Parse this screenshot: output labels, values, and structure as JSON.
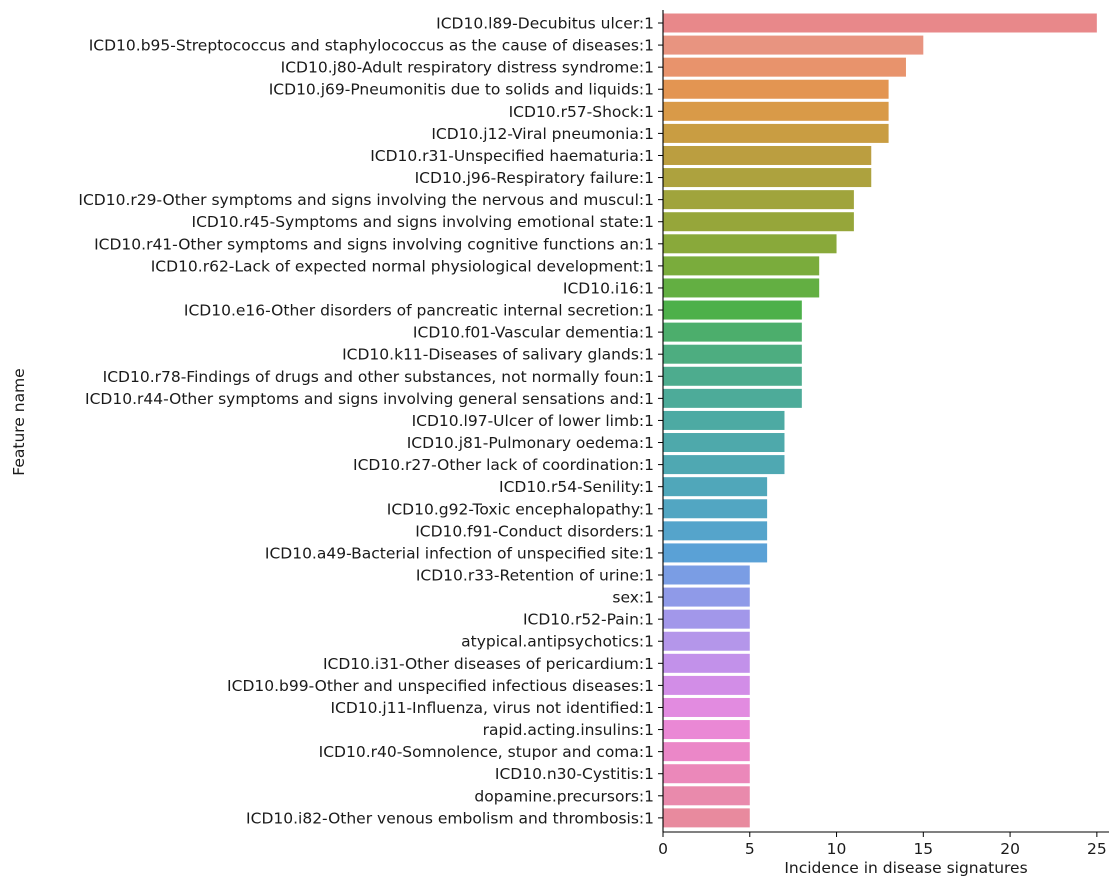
{
  "chart_data": {
    "type": "bar",
    "orientation": "horizontal",
    "xlabel": "Incidence in disease signatures",
    "ylabel": "Feature name",
    "xlim": [
      0,
      25.7
    ],
    "xticks": [
      0,
      5,
      10,
      15,
      20,
      25
    ],
    "grid": false,
    "categories": [
      "ICD10.l89-Decubitus ulcer:1",
      "ICD10.b95-Streptococcus and staphylococcus as the cause of diseases:1",
      "ICD10.j80-Adult respiratory distress syndrome:1",
      "ICD10.j69-Pneumonitis due to solids and liquids:1",
      "ICD10.r57-Shock:1",
      "ICD10.j12-Viral pneumonia:1",
      "ICD10.r31-Unspecified haematuria:1",
      "ICD10.j96-Respiratory failure:1",
      "ICD10.r29-Other symptoms and signs involving the nervous and muscul:1",
      "ICD10.r45-Symptoms and signs involving emotional state:1",
      "ICD10.r41-Other symptoms and signs involving cognitive functions an:1",
      "ICD10.r62-Lack of expected normal physiological development:1",
      "ICD10.i16:1",
      "ICD10.e16-Other disorders of pancreatic internal secretion:1",
      "ICD10.f01-Vascular dementia:1",
      "ICD10.k11-Diseases of salivary glands:1",
      "ICD10.r78-Findings of drugs and other substances, not normally foun:1",
      "ICD10.r44-Other symptoms and signs involving general sensations and:1",
      "ICD10.l97-Ulcer of lower limb:1",
      "ICD10.j81-Pulmonary oedema:1",
      "ICD10.r27-Other lack of coordination:1",
      "ICD10.r54-Senility:1",
      "ICD10.g92-Toxic encephalopathy:1",
      "ICD10.f91-Conduct disorders:1",
      "ICD10.a49-Bacterial infection of unspecified site:1",
      "ICD10.r33-Retention of urine:1",
      "sex:1",
      "ICD10.r52-Pain:1",
      "atypical.antipsychotics:1",
      "ICD10.i31-Other diseases of pericardium:1",
      "ICD10.b99-Other and unspecified infectious diseases:1",
      "ICD10.j11-Influenza, virus not identified:1",
      "rapid.acting.insulins:1",
      "ICD10.r40-Somnolence, stupor and coma:1",
      "ICD10.n30-Cystitis:1",
      "dopamine.precursors:1",
      "ICD10.i82-Other venous embolism and thrombosis:1"
    ],
    "values": [
      25,
      15,
      14,
      13,
      13,
      13,
      12,
      12,
      11,
      11,
      10,
      9,
      9,
      8,
      8,
      8,
      8,
      8,
      7,
      7,
      7,
      6,
      6,
      6,
      6,
      5,
      5,
      5,
      5,
      5,
      5,
      5,
      5,
      5,
      5,
      5,
      5
    ],
    "colors": [
      "#e8888a",
      "#e89480",
      "#e8936c",
      "#e39552",
      "#d99a48",
      "#c99d42",
      "#bb9e40",
      "#ada23e",
      "#a0a43c",
      "#96a63a",
      "#89a93a",
      "#7aac3c",
      "#63af42",
      "#4db04a",
      "#4cae6c",
      "#4dad80",
      "#4dac8e",
      "#4dab99",
      "#4daaa3",
      "#4ea9ab",
      "#4fa8b2",
      "#50a7ba",
      "#52a6c2",
      "#55a4cb",
      "#5aa1d6",
      "#7a9de4",
      "#8f9ae8",
      "#a297ea",
      "#b496ea",
      "#c291ea",
      "#d28de7",
      "#e28be0",
      "#ea88d5",
      "#eb87c8",
      "#eb88ba",
      "#e98aac",
      "#e88a9e"
    ]
  }
}
